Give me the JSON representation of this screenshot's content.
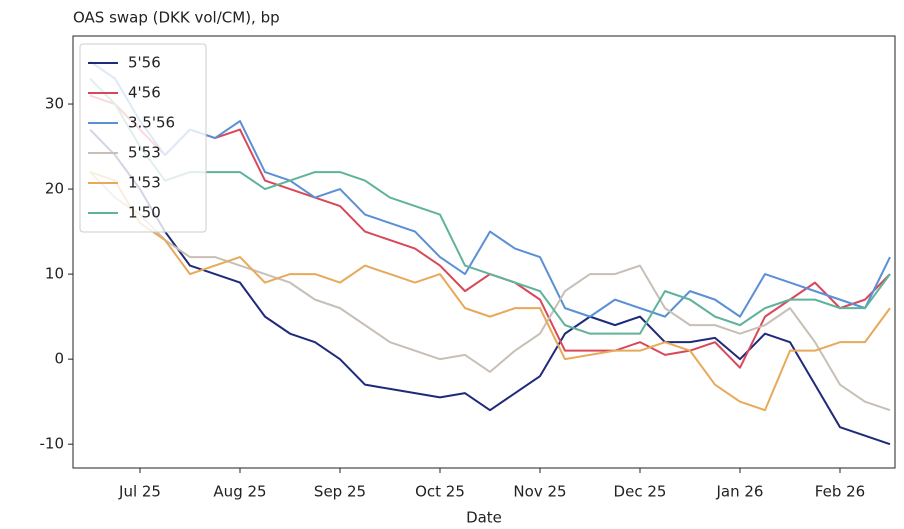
{
  "chart_data": {
    "type": "line",
    "title": "OAS swap (DKK vol/CM), bp",
    "xlabel": "Date",
    "categories": [
      null,
      null,
      "Jul 25",
      null,
      null,
      null,
      "Aug 25",
      null,
      null,
      null,
      "Sep 25",
      null,
      null,
      null,
      "Oct 25",
      null,
      null,
      null,
      "Nov 25",
      null,
      null,
      null,
      "Dec 25",
      null,
      null,
      null,
      "Jan 26",
      null,
      null,
      null,
      "Feb 26",
      null,
      null
    ],
    "series": [
      {
        "name": "5'56",
        "color": "#1f2a7a",
        "values": [
          27,
          24,
          20,
          15,
          11,
          10,
          9,
          5,
          3,
          2,
          0,
          -3,
          -3.5,
          -4,
          -4.5,
          -4,
          -6,
          -4,
          -2,
          3,
          5,
          4,
          5,
          2,
          2,
          2.5,
          0,
          3,
          2,
          -3,
          -8,
          -9,
          -10
        ]
      },
      {
        "name": "4'56",
        "color": "#d9485a",
        "values": [
          31,
          30,
          27,
          24,
          27,
          26,
          27,
          21,
          20,
          19,
          18,
          15,
          14,
          13,
          11,
          8,
          10,
          9,
          7,
          1,
          1,
          1,
          2,
          0.5,
          1,
          2,
          -1,
          5,
          7,
          9,
          6,
          7,
          10
        ]
      },
      {
        "name": "3.5'56",
        "color": "#5b8fd6",
        "values": [
          35,
          33,
          28,
          24,
          27,
          26,
          28,
          22,
          21,
          19,
          20,
          17,
          16,
          15,
          12,
          10,
          15,
          13,
          12,
          6,
          5,
          7,
          6,
          5,
          8,
          7,
          5,
          10,
          9,
          8,
          7,
          6,
          12
        ]
      },
      {
        "name": "5'53",
        "color": "#c8bfb6",
        "values": [
          22,
          19,
          17,
          14,
          12,
          12,
          11,
          10,
          9,
          7,
          6,
          4,
          2,
          1,
          0,
          0.5,
          -1.5,
          1,
          3,
          8,
          10,
          10,
          11,
          6,
          4,
          4,
          3,
          4,
          6,
          2,
          -3,
          -5,
          -6
        ]
      },
      {
        "name": "1'53",
        "color": "#e8a95a",
        "values": [
          22,
          21,
          16,
          14,
          10,
          11,
          12,
          9,
          10,
          10,
          9,
          11,
          10,
          9,
          10,
          6,
          5,
          6,
          6,
          0,
          0.5,
          1,
          1,
          2,
          1,
          -3,
          -5,
          -6,
          1,
          1,
          2,
          2,
          6
        ]
      },
      {
        "name": "1'50",
        "color": "#5fb39b",
        "values": [
          33,
          30,
          25,
          21,
          22,
          22,
          22,
          20,
          21,
          22,
          22,
          21,
          19,
          18,
          17,
          11,
          10,
          9,
          8,
          4,
          3,
          3,
          3,
          8,
          7,
          5,
          4,
          6,
          7,
          7,
          6,
          6,
          10
        ]
      }
    ],
    "ylim": [
      -12.8,
      38
    ],
    "yticks": [
      -10,
      0,
      10,
      20,
      30
    ],
    "legend": "upper left"
  }
}
